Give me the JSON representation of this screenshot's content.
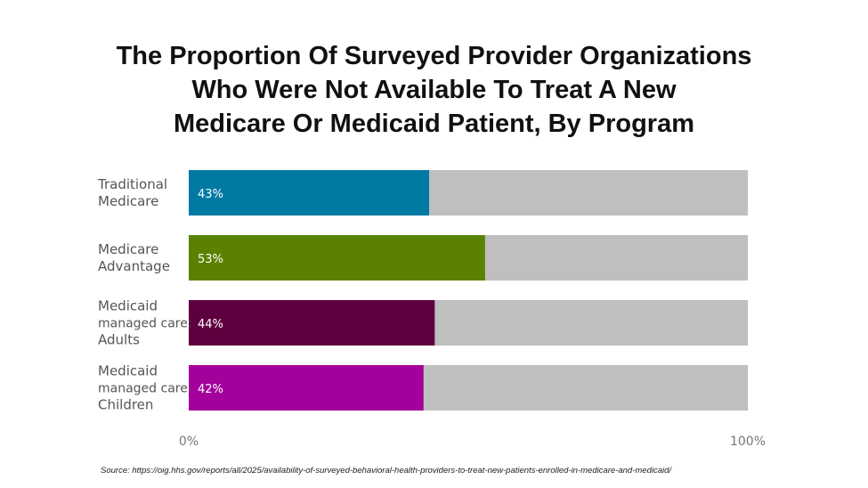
{
  "title_lines": [
    "The Proportion Of Surveyed Provider Organizations",
    "Who Were Not Available To Treat A New",
    "Medicare Or Medicaid Patient, By Program"
  ],
  "source": "Source: https://oig.hhs.gov/reports/all/2025/availability-of-surveyed-behavioral-health-providers-to-treat-new-patients-enrolled-in-medicare-and-medicaid/",
  "chart_data": {
    "type": "bar",
    "orientation": "horizontal",
    "title": "The Proportion Of Surveyed Provider Organizations Who Were Not Available To Treat A New Medicare Or Medicaid Patient, By Program",
    "categories": [
      {
        "lines": [
          "Traditional",
          "Medicare"
        ]
      },
      {
        "lines": [
          "Medicare",
          "Advantage"
        ]
      },
      {
        "lines": [
          "Medicaid",
          "managed care:",
          "Adults"
        ]
      },
      {
        "lines": [
          "Medicaid",
          "managed care:",
          "Children"
        ]
      }
    ],
    "values": [
      43,
      53,
      44,
      42
    ],
    "value_labels": [
      "43%",
      "53%",
      "44%",
      "42%"
    ],
    "colors": [
      "#0079a3",
      "#5a8200",
      "#5e0040",
      "#a4009b"
    ],
    "background_color": "#bfbfbf",
    "xlim": [
      0,
      100
    ],
    "x_tick_labels": [
      "0%",
      "100%"
    ],
    "grid": false,
    "legend": "none"
  }
}
